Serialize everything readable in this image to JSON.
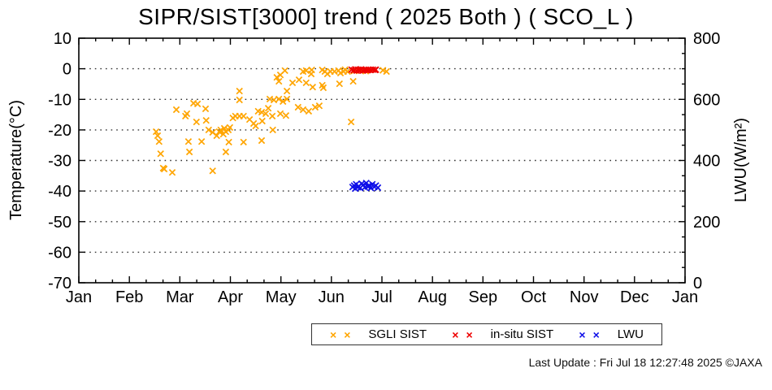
{
  "title": "SIPR/SIST[3000] trend ( 2025 Both ) ( SCO_L )",
  "footer": "Last Update : Fri Jul 18 12:27:48 2025  ©JAXA",
  "chart_data": {
    "type": "scatter",
    "title": "SIPR/SIST[3000] trend ( 2025 Both ) ( SCO_L )",
    "grid": "dotted-horizontal",
    "legend_position": "bottom-center-outside",
    "x_axis": {
      "tick_labels": [
        "Jan",
        "Feb",
        "Mar",
        "Apr",
        "May",
        "Jun",
        "Jul",
        "Aug",
        "Sep",
        "Oct",
        "Nov",
        "Dec",
        "Jan"
      ],
      "months_span": 12,
      "minor_divisions_per_month": 3
    },
    "y_left": {
      "label": "Temperature(°C)",
      "min": -70,
      "max": 10,
      "tick_step": 10,
      "tick_labels": [
        "10",
        "0",
        "-10",
        "-20",
        "-30",
        "-40",
        "-50",
        "-60",
        "-70"
      ],
      "grid_ticks": [
        0,
        -10,
        -20,
        -30,
        -40,
        -50,
        -60
      ]
    },
    "y_right": {
      "label": "LWU(W/m²)",
      "min": 0,
      "max": 800,
      "tick_step": 200,
      "minor_step": 50,
      "tick_labels": [
        "800",
        "600",
        "400",
        "200",
        "0"
      ]
    },
    "series": [
      {
        "name": "SGLI SIST",
        "color": "#FFA500",
        "marker": "x",
        "axis": "left",
        "points": [
          [
            1.53,
            -20.6
          ],
          [
            1.56,
            -21.9
          ],
          [
            1.59,
            -23.8
          ],
          [
            1.62,
            -27.8
          ],
          [
            1.67,
            -32.5
          ],
          [
            1.69,
            -32.8
          ],
          [
            1.85,
            -33.9
          ],
          [
            1.93,
            -13.4
          ],
          [
            2.11,
            -15.5
          ],
          [
            2.14,
            -14.7
          ],
          [
            2.17,
            -23.8
          ],
          [
            2.19,
            -27.2
          ],
          [
            2.27,
            -11.3
          ],
          [
            2.33,
            -17.4
          ],
          [
            2.35,
            -11.5
          ],
          [
            2.43,
            -23.8
          ],
          [
            2.51,
            -13.1
          ],
          [
            2.52,
            -16.9
          ],
          [
            2.57,
            -20.0
          ],
          [
            2.65,
            -33.4
          ],
          [
            2.65,
            -20.8
          ],
          [
            2.73,
            -21.9
          ],
          [
            2.78,
            -20.6
          ],
          [
            2.81,
            -20.0
          ],
          [
            2.86,
            -21.4
          ],
          [
            2.88,
            -19.5
          ],
          [
            2.91,
            -27.2
          ],
          [
            2.91,
            -20.6
          ],
          [
            2.96,
            -20.0
          ],
          [
            2.97,
            -24.0
          ],
          [
            2.99,
            -19.2
          ],
          [
            3.05,
            -16.1
          ],
          [
            3.1,
            -15.5
          ],
          [
            3.18,
            -7.3
          ],
          [
            3.18,
            -10.2
          ],
          [
            3.18,
            -15.5
          ],
          [
            3.26,
            -15.5
          ],
          [
            3.26,
            -24.0
          ],
          [
            3.38,
            -16.6
          ],
          [
            3.46,
            -17.9
          ],
          [
            3.5,
            -18.7
          ],
          [
            3.55,
            -13.9
          ],
          [
            3.62,
            -14.2
          ],
          [
            3.62,
            -23.5
          ],
          [
            3.63,
            -17.1
          ],
          [
            3.7,
            -14.7
          ],
          [
            3.75,
            -12.9
          ],
          [
            3.78,
            -9.9
          ],
          [
            3.83,
            -15.5
          ],
          [
            3.84,
            -20.0
          ],
          [
            3.86,
            -10.2
          ],
          [
            3.92,
            -2.8
          ],
          [
            3.96,
            -4.1
          ],
          [
            3.96,
            -9.9
          ],
          [
            3.99,
            -2.0
          ],
          [
            3.99,
            -14.7
          ],
          [
            4.04,
            -10.7
          ],
          [
            4.08,
            -0.6
          ],
          [
            4.1,
            -15.3
          ],
          [
            4.12,
            -7.3
          ],
          [
            4.12,
            -9.9
          ],
          [
            4.23,
            -4.6
          ],
          [
            4.34,
            -12.6
          ],
          [
            4.36,
            -3.6
          ],
          [
            4.44,
            -0.9
          ],
          [
            4.44,
            -13.4
          ],
          [
            4.5,
            -0.6
          ],
          [
            4.5,
            -4.6
          ],
          [
            4.55,
            -13.9
          ],
          [
            4.6,
            -1.7
          ],
          [
            4.61,
            -0.4
          ],
          [
            4.63,
            -6.0
          ],
          [
            4.68,
            -12.6
          ],
          [
            4.76,
            -12.1
          ],
          [
            4.82,
            -0.4
          ],
          [
            4.82,
            -5.4
          ],
          [
            4.84,
            -6.2
          ],
          [
            4.87,
            -0.9
          ],
          [
            4.92,
            -1.7
          ],
          [
            4.98,
            -0.9
          ],
          [
            5.06,
            -0.9
          ],
          [
            5.14,
            -0.6
          ],
          [
            5.16,
            -4.9
          ],
          [
            5.18,
            -1.4
          ],
          [
            5.24,
            -0.9
          ],
          [
            5.27,
            -0.3
          ],
          [
            5.32,
            -0.9
          ],
          [
            5.39,
            -17.4
          ],
          [
            5.43,
            -4.1
          ],
          [
            5.45,
            -0.7
          ],
          [
            5.58,
            -0.5
          ],
          [
            5.68,
            -0.8
          ],
          [
            6.02,
            -0.5
          ],
          [
            6.09,
            -0.9
          ]
        ]
      },
      {
        "name": "in-situ SIST",
        "color": "#EE0000",
        "marker": "x",
        "axis": "left",
        "points": [
          [
            5.4,
            -0.3
          ],
          [
            5.44,
            -0.5
          ],
          [
            5.47,
            -0.2
          ],
          [
            5.5,
            -0.6
          ],
          [
            5.53,
            -0.3
          ],
          [
            5.56,
            -0.5
          ],
          [
            5.59,
            -0.2
          ],
          [
            5.62,
            -0.6
          ],
          [
            5.65,
            -0.4
          ],
          [
            5.68,
            -0.3
          ],
          [
            5.71,
            -0.5
          ],
          [
            5.74,
            -0.3
          ],
          [
            5.78,
            -0.4
          ],
          [
            5.82,
            -0.3
          ],
          [
            5.86,
            -0.4
          ],
          [
            5.88,
            -0.3
          ]
        ]
      },
      {
        "name": "LWU",
        "color": "#0F0FE8",
        "marker": "x",
        "axis": "right",
        "points": [
          [
            5.42,
            313
          ],
          [
            5.45,
            318
          ],
          [
            5.47,
            308
          ],
          [
            5.49,
            322
          ],
          [
            5.52,
            312
          ],
          [
            5.54,
            316
          ],
          [
            5.57,
            310
          ],
          [
            5.6,
            324
          ],
          [
            5.63,
            320
          ],
          [
            5.66,
            312
          ],
          [
            5.69,
            326
          ],
          [
            5.72,
            315
          ],
          [
            5.75,
            318
          ],
          [
            5.78,
            310
          ],
          [
            5.81,
            322
          ],
          [
            5.85,
            314
          ],
          [
            5.88,
            318
          ],
          [
            5.92,
            311
          ]
        ]
      }
    ]
  }
}
